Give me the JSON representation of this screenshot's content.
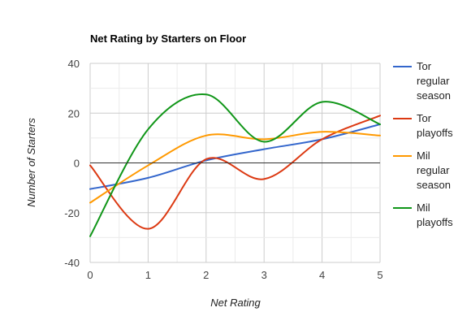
{
  "chart_data": {
    "type": "line",
    "title": "Net Rating by Starters on Floor",
    "xlabel": "Net Rating",
    "ylabel": "Number of Starters",
    "x": [
      0,
      1,
      2,
      3,
      4,
      5
    ],
    "xlim": [
      0,
      5
    ],
    "ylim": [
      -40,
      40
    ],
    "x_ticks": [
      0,
      1,
      2,
      3,
      4,
      5
    ],
    "y_ticks": [
      40,
      20,
      0,
      -20,
      -40
    ],
    "grid": true,
    "curve": "smooth",
    "legend_position": "right",
    "series": [
      {
        "name": "Tor regular season",
        "legend_lines": [
          "Tor",
          "regular",
          "season"
        ],
        "color": "#3366cc",
        "values": [
          -10.5,
          -6,
          1,
          5.5,
          9.5,
          15.5
        ]
      },
      {
        "name": "Tor playoffs",
        "legend_lines": [
          "Tor",
          "playoffs"
        ],
        "color": "#dc3912",
        "values": [
          -1,
          -26.5,
          1.5,
          -6.5,
          9.5,
          19
        ]
      },
      {
        "name": "Mil regular season",
        "legend_lines": [
          "Mil",
          "regular",
          "season"
        ],
        "color": "#ff9900",
        "values": [
          -16,
          -1,
          11,
          9.5,
          12.5,
          11
        ]
      },
      {
        "name": "Mil playoffs",
        "legend_lines": [
          "Mil",
          "playoffs"
        ],
        "color": "#109618",
        "values": [
          -29.5,
          13.5,
          27.5,
          8.5,
          24.5,
          15.5
        ]
      }
    ]
  }
}
